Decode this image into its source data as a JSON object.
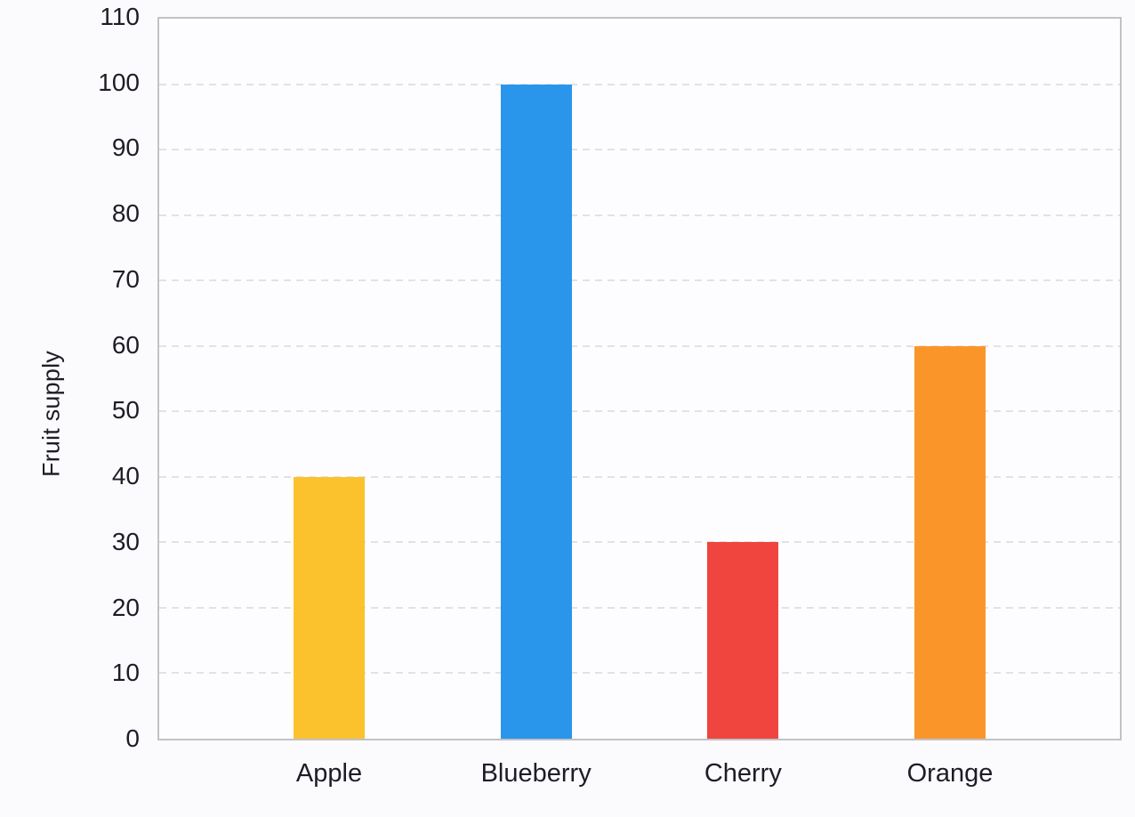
{
  "chart_data": {
    "type": "bar",
    "title": "",
    "xlabel": "",
    "ylabel": "Fruit supply",
    "categories": [
      "Apple",
      "Blueberry",
      "Cherry",
      "Orange"
    ],
    "values": [
      40,
      100,
      30,
      60
    ],
    "bar_colors": [
      "#fcc22d",
      "#2996eb",
      "#f0453e",
      "#fa9629"
    ],
    "ylim": [
      0,
      110
    ],
    "yticks": [
      0,
      10,
      20,
      30,
      40,
      50,
      60,
      70,
      80,
      90,
      100,
      110
    ],
    "grid": "horizontal-dashed",
    "gridline_color": "#e2e2e6",
    "axis_border_color": "#c1c1c7",
    "plot_background": "#fdfdff",
    "page_background": "#fbfbfe",
    "legend_position": "none"
  }
}
